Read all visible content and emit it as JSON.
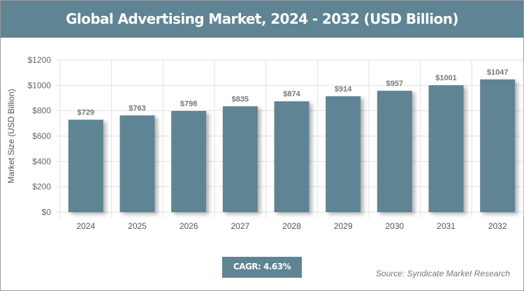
{
  "chart_data": {
    "type": "bar",
    "title": "Global Advertising Market, 2024 - 2032 (USD Billion)",
    "xlabel": "",
    "ylabel": "Market Size (USD Billion)",
    "categories": [
      "2024",
      "2025",
      "2026",
      "2027",
      "2028",
      "2029",
      "2030",
      "2031",
      "2032"
    ],
    "values": [
      729,
      763,
      798,
      835,
      874,
      914,
      957,
      1001,
      1047
    ],
    "data_labels": [
      "$729",
      "$763",
      "$798",
      "$835",
      "$874",
      "$914",
      "$957",
      "$1001",
      "$1047"
    ],
    "ylim": [
      0,
      1200
    ],
    "yticks": [
      0,
      200,
      400,
      600,
      800,
      1000,
      1200
    ],
    "ytick_labels": [
      "$0",
      "$200",
      "$400",
      "$600",
      "$800",
      "$1000",
      "$1200"
    ],
    "grid": true,
    "bar_color": "#5f8494"
  },
  "cagr": "CAGR: 4.63%",
  "source": "Source: Syndicate Market Research"
}
